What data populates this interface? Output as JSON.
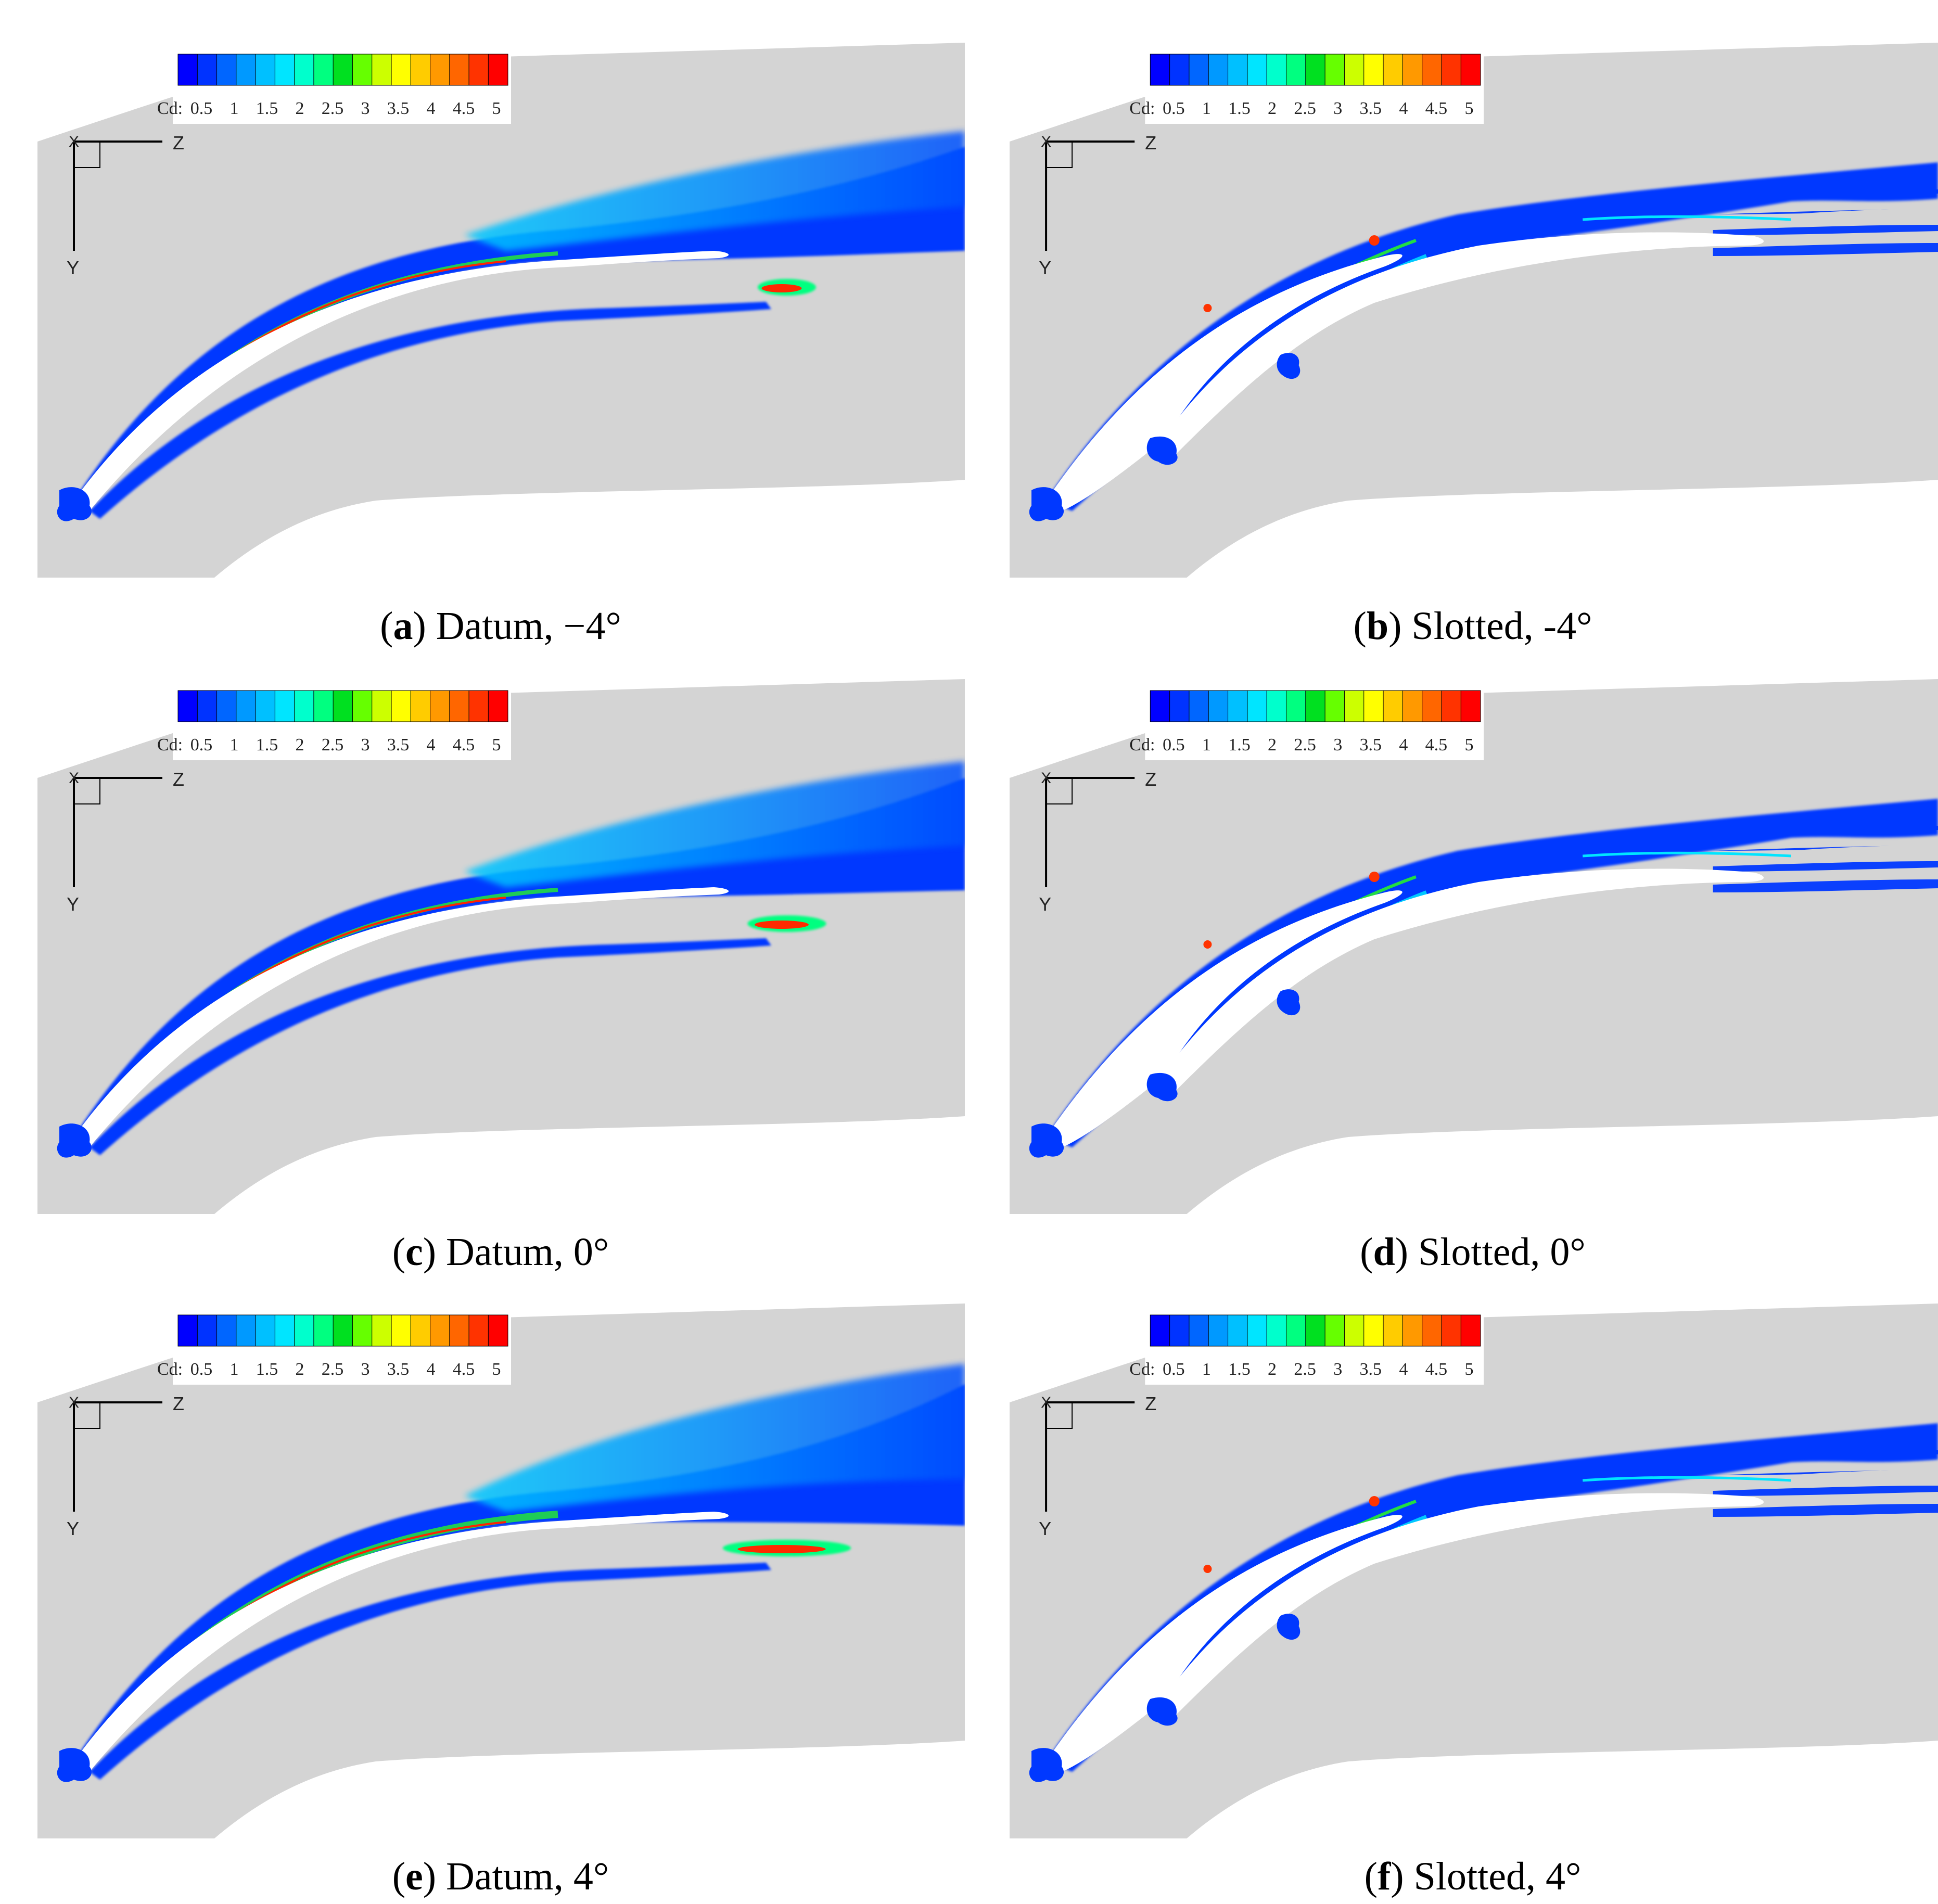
{
  "legend": {
    "label": "Cd:",
    "ticks": [
      "0.5",
      "1",
      "1.5",
      "2",
      "2.5",
      "3",
      "3.5",
      "4",
      "4.5",
      "5"
    ],
    "colors": [
      "#0000ff",
      "#0033ff",
      "#0066ff",
      "#0099ff",
      "#00c0ff",
      "#00e5ff",
      "#00ffcc",
      "#00ff80",
      "#00e020",
      "#66ff00",
      "#ccff00",
      "#ffff00",
      "#ffcc00",
      "#ff9900",
      "#ff6600",
      "#ff3300",
      "#ff0000"
    ]
  },
  "axes": {
    "horizontal": "Z",
    "vertical": "Y",
    "origin": "X"
  },
  "colors": {
    "background": "#d4d4d4",
    "blade": "#ffffff",
    "low": "#0038ff"
  },
  "panels": [
    {
      "letter": "a",
      "caption": "Datum, −4°",
      "blade": "datum",
      "incidence": -4
    },
    {
      "letter": "b",
      "caption": "Slotted, -4°",
      "blade": "slotted",
      "incidence": -4
    },
    {
      "letter": "c",
      "caption": "Datum, 0°",
      "blade": "datum",
      "incidence": 0
    },
    {
      "letter": "d",
      "caption": "Slotted, 0°",
      "blade": "slotted",
      "incidence": 0
    },
    {
      "letter": "e",
      "caption": "Datum, 4°",
      "blade": "datum",
      "incidence": 4
    },
    {
      "letter": "f",
      "caption": "Slotted, 4°",
      "blade": "slotted",
      "incidence": 4
    }
  ]
}
